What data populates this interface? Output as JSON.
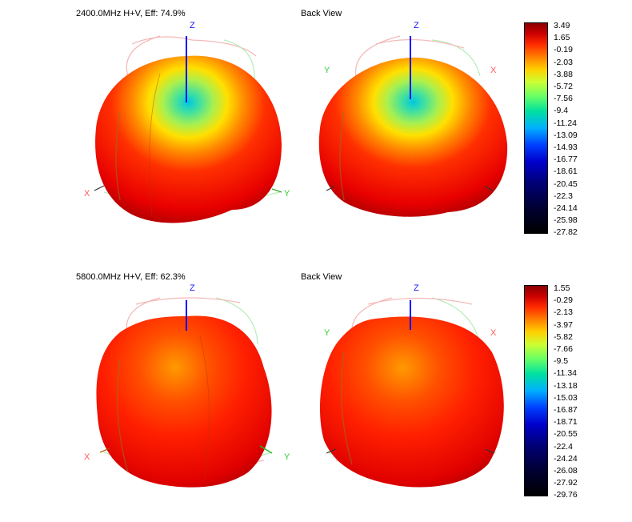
{
  "panels": [
    {
      "title": "2400.0MHz H+V, Eff: 74.9%"
    },
    {
      "title": "Back View"
    },
    {
      "title": "5800.0MHz H+V, Eff: 62.3%"
    },
    {
      "title": "Back View"
    }
  ],
  "axis_labels": {
    "x": "X",
    "y": "Y",
    "z": "Z"
  },
  "colorbars": [
    {
      "ticks": [
        "3.49",
        "1.65",
        "-0.19",
        "-2.03",
        "-3.88",
        "-5.72",
        "-7.56",
        "-9.4",
        "-11.24",
        "-13.09",
        "-14.93",
        "-16.77",
        "-18.61",
        "-20.45",
        "-22.3",
        "-24.14",
        "-25.98",
        "-27.82"
      ]
    },
    {
      "ticks": [
        "1.55",
        "-0.29",
        "-2.13",
        "-3.97",
        "-5.82",
        "-7.66",
        "-9.5",
        "-11.34",
        "-13.18",
        "-15.03",
        "-16.87",
        "-18.71",
        "-20.55",
        "-22.4",
        "-24.24",
        "-26.08",
        "-27.92",
        "-29.76"
      ]
    }
  ],
  "colors": {
    "z_axis": "#1a1aff",
    "x_axis": "#ff5a5a",
    "y_axis": "#33cc33"
  }
}
